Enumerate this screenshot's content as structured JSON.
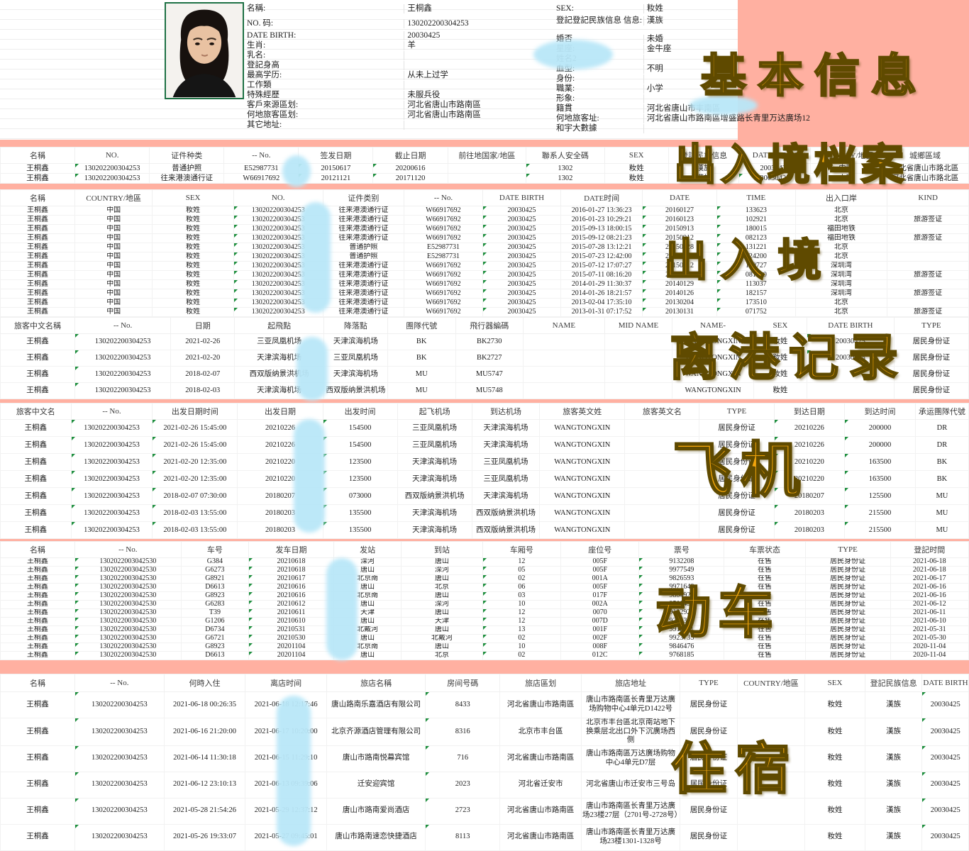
{
  "overlays": [
    {
      "id": "basic",
      "text": "基本信息"
    },
    {
      "id": "archive",
      "text": "出入境档案"
    },
    {
      "id": "entryexit",
      "text": "出入境"
    },
    {
      "id": "departure",
      "text": "离港记录"
    },
    {
      "id": "flight",
      "text": "飞机"
    },
    {
      "id": "train",
      "text": "动车"
    },
    {
      "id": "hotel",
      "text": "住宿"
    }
  ],
  "colors": {
    "background": "#ffb0a1",
    "label_orange": "#f2a50c",
    "redaction_blue": "#b9e7f8",
    "flag_green": "#1e8f3e"
  },
  "profile": {
    "left": [
      [
        "名稱:",
        "王桐鑫"
      ],
      [
        "NO. 码:",
        "130202200304253"
      ],
      [
        "DATE BIRTH:",
        "20030425"
      ],
      [
        "生肖:",
        "羊"
      ],
      [
        "乳名:",
        ""
      ],
      [
        "登記身高",
        ""
      ],
      [
        "最高学历:",
        "从未上过学"
      ],
      [
        "工作類",
        ""
      ],
      [
        "特殊經歷",
        "未服兵役"
      ],
      [
        "客戶來源區划:",
        "河北省唐山市路南區"
      ],
      [
        "何地旅客區划:",
        "河北省唐山市路南區"
      ],
      [
        "其它地址:",
        ""
      ]
    ],
    "right": [
      [
        "SEX:",
        "籹姓"
      ],
      [
        "登記登記民族信息 信息:",
        "漢族"
      ],
      [
        "婚否",
        "未婚"
      ],
      [
        "星座:",
        "金牛座"
      ],
      [
        "姓名2",
        ""
      ],
      [
        "血型:",
        "不明"
      ],
      [
        "身份:",
        ""
      ],
      [
        "職業:",
        "小学"
      ],
      [
        "形象:",
        ""
      ],
      [
        "籍貫",
        "河北省唐山市丰南區"
      ],
      [
        "何地旅客址:",
        "河北省唐山市路南區增盛路长青里万达廣场12"
      ],
      [
        "和宇大數據",
        ""
      ]
    ]
  },
  "tables": [
    {
      "name": "entry-exit-archive",
      "headers": [
        "名稱",
        "NO.",
        "证件种类",
        "-- No.",
        "签发日期",
        "截止日期",
        "前往地国家/地區",
        "聯系人安全碼",
        "SEX",
        "登記民族信息",
        "DATE BIRTH",
        "COUNTRY/地區",
        "城鄉區域"
      ],
      "rows": [
        [
          "王桐鑫",
          "130202200304253",
          "普通护照",
          "E52987731",
          "20150617",
          "20200616",
          "",
          "1302",
          "籹姓",
          "漢族",
          "20030425",
          "中国",
          "河北省唐山市路北區"
        ],
        [
          "王桐鑫",
          "130202200304253",
          "往来港澳通行证",
          "W66917692",
          "20121121",
          "20171120",
          "",
          "1302",
          "籹姓",
          "漢族",
          "20030425",
          "中国",
          "河北省唐山市路北區"
        ]
      ]
    },
    {
      "name": "entry-exit-records",
      "headers": [
        "名稱",
        "COUNTRY/地區",
        "SEX",
        "NO.",
        "证件类别",
        "-- No.",
        "DATE BIRTH",
        "DATE时间",
        "DATE",
        "TIME",
        "出入口岸",
        "KIND"
      ],
      "rows": [
        [
          "王桐鑫",
          "中国",
          "籹姓",
          "130202200304253",
          "往来港澳通行证",
          "W66917692",
          "20030425",
          "2016-01-27 13:36:23",
          "20160127",
          "133623",
          "北京",
          ""
        ],
        [
          "王桐鑫",
          "中国",
          "籹姓",
          "130202200304253",
          "往来港澳通行证",
          "W66917692",
          "20030425",
          "2016-01-23 10:29:21",
          "20160123",
          "102921",
          "北京",
          "旅游签证"
        ],
        [
          "王桐鑫",
          "中国",
          "籹姓",
          "130202200304253",
          "往来港澳通行证",
          "W66917692",
          "20030425",
          "2015-09-13 18:00:15",
          "20150913",
          "180015",
          "福田地铁",
          ""
        ],
        [
          "王桐鑫",
          "中国",
          "籹姓",
          "130202200304253",
          "往来港澳通行证",
          "W66917692",
          "20030425",
          "2015-09-12 08:21:23",
          "20150912",
          "082123",
          "福田地铁",
          "旅游签证"
        ],
        [
          "王桐鑫",
          "中国",
          "籹姓",
          "130202200304253",
          "普通护照",
          "E52987731",
          "20030425",
          "2015-07-28 13:12:21",
          "20150728",
          "131221",
          "北京",
          ""
        ],
        [
          "王桐鑫",
          "中国",
          "籹姓",
          "130202200304253",
          "普通护照",
          "E52987731",
          "20030425",
          "2015-07-23 12:42:00",
          "20150723",
          "124200",
          "北京",
          ""
        ],
        [
          "王桐鑫",
          "中国",
          "籹姓",
          "130202200304253",
          "往来港澳通行证",
          "W66917692",
          "20030425",
          "2015-07-12 17:07:27",
          "20150712",
          "170727",
          "深圳湾",
          ""
        ],
        [
          "王桐鑫",
          "中国",
          "籹姓",
          "130202200304253",
          "往来港澳通行证",
          "W66917692",
          "20030425",
          "2015-07-11 08:16:20",
          "20150711",
          "081620",
          "深圳湾",
          "旅游签证"
        ],
        [
          "王桐鑫",
          "中国",
          "籹姓",
          "130202200304253",
          "往来港澳通行证",
          "W66917692",
          "20030425",
          "2014-01-29 11:30:37",
          "20140129",
          "113037",
          "深圳湾",
          ""
        ],
        [
          "王桐鑫",
          "中国",
          "籹姓",
          "130202200304253",
          "往来港澳通行证",
          "W66917692",
          "20030425",
          "2014-01-26 18:21:57",
          "20140126",
          "182157",
          "深圳湾",
          "旅游签证"
        ],
        [
          "王桐鑫",
          "中国",
          "籹姓",
          "130202200304253",
          "往来港澳通行证",
          "W66917692",
          "20030425",
          "2013-02-04 17:35:10",
          "20130204",
          "173510",
          "北京",
          ""
        ],
        [
          "王桐鑫",
          "中国",
          "籹姓",
          "130202200304253",
          "往来港澳通行证",
          "W66917692",
          "20030425",
          "2013-01-31 07:17:52",
          "20130131",
          "071752",
          "北京",
          "旅游签证"
        ]
      ]
    },
    {
      "name": "departure-records",
      "headers": [
        "旅客中文名稱",
        "-- No.",
        "日期",
        "起飛點",
        "降落點",
        "團隊代號",
        "飛行器編碼",
        "NAME",
        "MID NAME",
        "NAME-",
        "SEX",
        "DATE BIRTH",
        "TYPE"
      ],
      "rows": [
        [
          "王桐鑫",
          "130202200304253",
          "2021-02-26",
          "三亚凤凰机场",
          "天津滨海机场",
          "BK",
          "BK2730",
          "",
          "",
          "WANGTONGXIN",
          "籹姓",
          "20030425",
          "居民身份证"
        ],
        [
          "王桐鑫",
          "130202200304253",
          "2021-02-20",
          "天津滨海机场",
          "三亚凤凰机场",
          "BK",
          "BK2727",
          "",
          "",
          "WANGTONGXIN",
          "籹姓",
          "20030425",
          "居民身份证"
        ],
        [
          "王桐鑫",
          "130202200304253",
          "2018-02-07",
          "西双版纳景洪机场",
          "天津滨海机场",
          "MU",
          "MU5747",
          "",
          "",
          "WANGTONGXIN",
          "籹姓",
          "",
          "居民身份证"
        ],
        [
          "王桐鑫",
          "130202200304253",
          "2018-02-03",
          "天津滨海机场",
          "西双版纳景洪机场",
          "MU",
          "MU5748",
          "",
          "",
          "WANGTONGXIN",
          "籹姓",
          "",
          "居民身份证"
        ]
      ]
    },
    {
      "name": "flights",
      "headers": [
        "旅客中文名",
        "-- No.",
        "出发日期时间",
        "出发日期",
        "出发时间",
        "起飞机场",
        "到达机场",
        "旅客英文姓",
        "旅客英文名",
        "TYPE",
        "到达日期",
        "到达时间",
        "承运團隊代號"
      ],
      "rows": [
        [
          "王桐鑫",
          "130202200304253",
          "2021-02-26 15:45:00",
          "20210226",
          "154500",
          "三亚凤凰机场",
          "天津滨海机场",
          "WANGTONGXIN",
          "",
          "居民身份证",
          "20210226",
          "200000",
          "DR"
        ],
        [
          "王桐鑫",
          "130202200304253",
          "2021-02-26 15:45:00",
          "20210226",
          "154500",
          "三亚凤凰机场",
          "天津滨海机场",
          "WANGTONGXIN",
          "",
          "居民身份证",
          "20210226",
          "200000",
          "DR"
        ],
        [
          "王桐鑫",
          "130202200304253",
          "2021-02-20 12:35:00",
          "20210220",
          "123500",
          "天津滨海机场",
          "三亚凤凰机场",
          "WANGTONGXIN",
          "",
          "居民身份证",
          "20210220",
          "163500",
          "BK"
        ],
        [
          "王桐鑫",
          "130202200304253",
          "2021-02-20 12:35:00",
          "20210220",
          "123500",
          "天津滨海机场",
          "三亚凤凰机场",
          "WANGTONGXIN",
          "",
          "居民身份证",
          "20210220",
          "163500",
          "BK"
        ],
        [
          "王桐鑫",
          "130202200304253",
          "2018-02-07 07:30:00",
          "20180207",
          "073000",
          "西双版纳景洪机场",
          "天津滨海机场",
          "WANGTONGXIN",
          "",
          "居民身份证",
          "20180207",
          "125500",
          "MU"
        ],
        [
          "王桐鑫",
          "130202200304253",
          "2018-02-03 13:55:00",
          "20180203",
          "135500",
          "天津滨海机场",
          "西双版纳景洪机场",
          "WANGTONGXIN",
          "",
          "居民身份证",
          "20180203",
          "215500",
          "MU"
        ],
        [
          "王桐鑫",
          "130202200304253",
          "2018-02-03 13:55:00",
          "20180203",
          "135500",
          "天津滨海机场",
          "西双版纳景洪机场",
          "WANGTONGXIN",
          "",
          "居民身份证",
          "20180203",
          "215500",
          "MU"
        ]
      ]
    },
    {
      "name": "high-speed-rail",
      "headers": [
        "名稱",
        "-- No.",
        "车号",
        "发车日期",
        "发站",
        "到站",
        "车厢号",
        "座位号",
        "票号",
        "车票状态",
        "TYPE",
        "登記时間"
      ],
      "rows": [
        [
          "王桐鑫",
          "1302022003042530",
          "G384",
          "20210618",
          "滦河",
          "唐山",
          "12",
          "005F",
          "9132208",
          "在售",
          "居民身份证",
          "2021-06-18"
        ],
        [
          "王桐鑫",
          "1302022003042530",
          "G6273",
          "20210618",
          "唐山",
          "滦河",
          "05",
          "005F",
          "9977549",
          "在售",
          "居民身份证",
          "2021-06-18"
        ],
        [
          "王桐鑫",
          "1302022003042530",
          "G8921",
          "20210617",
          "北京南",
          "唐山",
          "02",
          "001A",
          "9826593",
          "在售",
          "居民身份证",
          "2021-06-17"
        ],
        [
          "王桐鑫",
          "1302022003042530",
          "D6613",
          "20210616",
          "唐山",
          "北京",
          "06",
          "005F",
          "9971648",
          "在售",
          "居民身份证",
          "2021-06-16"
        ],
        [
          "王桐鑫",
          "1302022003042530",
          "G8923",
          "20210616",
          "北京南",
          "唐山",
          "03",
          "017F",
          "9804925",
          "在售",
          "居民身份证",
          "2021-06-16"
        ],
        [
          "王桐鑫",
          "1302022003042530",
          "G6283",
          "20210612",
          "唐山",
          "滦河",
          "10",
          "002A",
          "9511438",
          "在售",
          "居民身份证",
          "2021-06-12"
        ],
        [
          "王桐鑫",
          "1302022003042530",
          "T39",
          "20210611",
          "天津",
          "唐山",
          "12",
          "0070",
          "9122922",
          "在售",
          "居民身份证",
          "2021-06-11"
        ],
        [
          "王桐鑫",
          "1302022003042530",
          "G1206",
          "20210610",
          "唐山",
          "天津",
          "12",
          "007D",
          "9255396",
          "在售",
          "居民身份证",
          "2021-06-10"
        ],
        [
          "王桐鑫",
          "1302022003042530",
          "D6734",
          "20210531",
          "北戴河",
          "唐山",
          "13",
          "001F",
          "9912611",
          "在售",
          "居民身份证",
          "2021-05-31"
        ],
        [
          "王桐鑫",
          "1302022003042530",
          "G6721",
          "20210530",
          "唐山",
          "北戴河",
          "02",
          "002F",
          "9923735",
          "在售",
          "居民身份证",
          "2021-05-30"
        ],
        [
          "王桐鑫",
          "1302022003042530",
          "G8923",
          "20201104",
          "北京南",
          "唐山",
          "10",
          "008F",
          "9846476",
          "在售",
          "居民身份证",
          "2020-11-04"
        ],
        [
          "王桐鑫",
          "1302022003042530",
          "D6613",
          "20201104",
          "唐山",
          "北京",
          "02",
          "012C",
          "9768185",
          "在售",
          "居民身份证",
          "2020-11-04"
        ]
      ]
    },
    {
      "name": "hotel-stays",
      "headers": [
        "名稱",
        "-- No.",
        "何時入住",
        "离店时间",
        "旅店名稱",
        "房间号碼",
        "旅店區划",
        "旅店地址",
        "TYPE",
        "COUNTRY/地區",
        "SEX",
        "登記民族信息",
        "DATE BIRTH"
      ],
      "rows": [
        [
          "王桐鑫",
          "130202200304253",
          "2021-06-18 00:26:35",
          "2021-06-18 12:17:46",
          "唐山路南乐嘉酒店有限公司",
          "8433",
          "河北省唐山市路南區",
          "唐山市路南區长青里万达廣场购物中心4单元D1422号",
          "居民身份证",
          "",
          "籹姓",
          "漢族",
          "20030425"
        ],
        [
          "王桐鑫",
          "130202200304253",
          "2021-06-16 21:20:00",
          "2021-06-17 10:20:00",
          "北京齐源酒店管理有限公司",
          "8316",
          "北京市丰台區",
          "北京市丰台區北京南站地下换乘层北出口外下沉廣场西侧",
          "居民身份证",
          "",
          "籹姓",
          "漢族",
          "20030425"
        ],
        [
          "王桐鑫",
          "130202200304253",
          "2021-06-14 11:30:18",
          "2021-06-15 11:29:10",
          "唐山市路南悦幕宾馆",
          "716",
          "河北省唐山市路南區",
          "唐山市路南區万达廣场购物中心4单元D7层",
          "居民身份证",
          "",
          "籹姓",
          "漢族",
          "20030425"
        ],
        [
          "王桐鑫",
          "130202200304253",
          "2021-06-12 23:10:13",
          "2021-06-13 09:39:06",
          "迁安迎宾馆",
          "2023",
          "河北省迁安市",
          "河北省唐山市迁安市三号岛",
          "居民身份证",
          "",
          "籹姓",
          "漢族",
          "20030425"
        ],
        [
          "王桐鑫",
          "130202200304253",
          "2021-05-28 21:54:26",
          "2021-05-29 12:37:12",
          "唐山市路南爱尚酒店",
          "2723",
          "河北省唐山市路南區",
          "唐山市路南區长青里万达廣场23楼27层（2701号-2728号）",
          "居民身份证",
          "",
          "籹姓",
          "漢族",
          "20030425"
        ],
        [
          "王桐鑫",
          "130202200304253",
          "2021-05-26 19:33:07",
          "2021-05-27 09:45:01",
          "唐山市路南速恋快捷酒店",
          "8113",
          "河北省唐山市路南區",
          "唐山市路南區长青里万达廣场23楼1301-1328号",
          "居民身份证",
          "",
          "籹姓",
          "漢族",
          "20030425"
        ]
      ]
    }
  ]
}
